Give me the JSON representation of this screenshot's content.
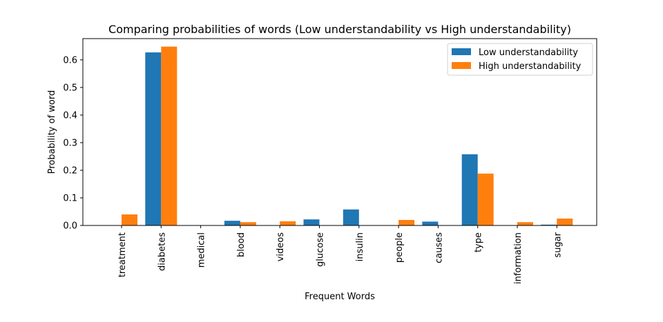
{
  "chart_data": {
    "type": "bar",
    "title": "Comparing probabilities of words (Low understandability vs High understandability)",
    "xlabel": "Frequent Words",
    "ylabel": "Probability of word",
    "categories": [
      "treatment",
      "diabetes",
      "medical",
      "blood",
      "videos",
      "glucose",
      "insulin",
      "people",
      "causes",
      "type",
      "information",
      "sugar"
    ],
    "series": [
      {
        "name": "Low understandability",
        "color": "#1f77b4",
        "values": [
          0.0,
          0.627,
          0.0,
          0.017,
          0.0,
          0.022,
          0.058,
          0.0,
          0.014,
          0.258,
          0.0,
          0.003
        ]
      },
      {
        "name": "High understandability",
        "color": "#ff7f0e",
        "values": [
          0.04,
          0.648,
          0.0,
          0.012,
          0.015,
          0.0,
          0.0,
          0.02,
          0.0,
          0.188,
          0.012,
          0.025
        ]
      }
    ],
    "ylim": [
      0,
      0.677
    ],
    "yticks": [
      0.0,
      0.1,
      0.2,
      0.3,
      0.4,
      0.5,
      0.6
    ],
    "legend_position": "top-right",
    "grid": false
  }
}
